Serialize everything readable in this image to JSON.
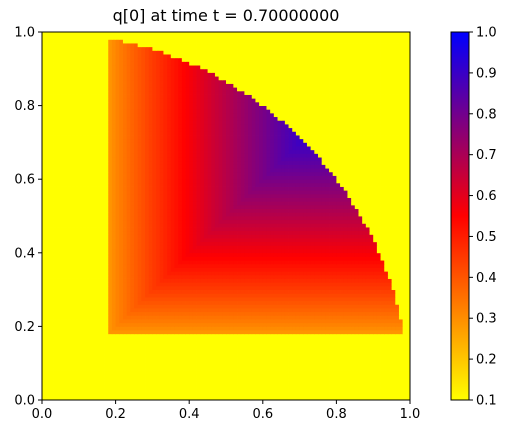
{
  "chart_data": {
    "type": "heatmap",
    "title": "q[0] at time t =     0.70000000",
    "xlabel": "",
    "ylabel": "",
    "xlim": [
      0,
      1
    ],
    "ylim": [
      0,
      1
    ],
    "x_ticks": [
      "0.0",
      "0.2",
      "0.4",
      "0.6",
      "0.8",
      "1.0"
    ],
    "y_ticks": [
      "0.0",
      "0.2",
      "0.4",
      "0.6",
      "0.8",
      "1.0"
    ],
    "grid": false,
    "colorbar": {
      "range": [
        0.1,
        1.0
      ],
      "ticks": [
        "0.1",
        "0.2",
        "0.3",
        "0.4",
        "0.5",
        "0.6",
        "0.7",
        "0.8",
        "0.9",
        "1.0"
      ],
      "colormap": [
        {
          "value": 0.1,
          "color": "#ffff00"
        },
        {
          "value": 0.55,
          "color": "#ff0000"
        },
        {
          "value": 1.0,
          "color": "#0000ff"
        }
      ]
    },
    "field": {
      "background_value": 0.1,
      "max_value": 1.0,
      "region_inner_corner": [
        0.18,
        0.18
      ],
      "plateau_corner": [
        0.8,
        0.8
      ],
      "circle_center": [
        0.0,
        0.0
      ],
      "circle_radius": 1.0
    }
  }
}
